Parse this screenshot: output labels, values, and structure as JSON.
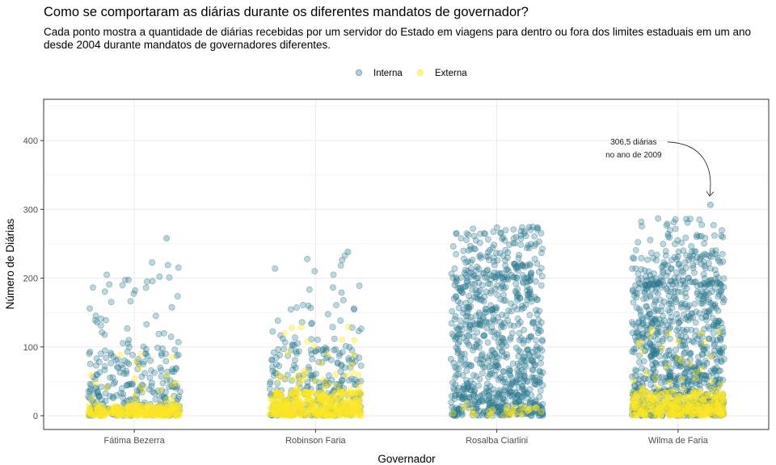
{
  "chart_data": {
    "type": "scatter",
    "title": "Como se comportaram as diárias durante os diferentes mandatos de governador?",
    "subtitle": "Cada ponto mostra a quantidade de diárias recebidas por um servidor do Estado em viagens para dentro ou fora dos limites estaduais em um ano desde 2004 durante mandatos de governadores diferentes.",
    "xlabel": "Governador",
    "ylabel": "Número de Diárias",
    "categories": [
      "Fátima Bezerra",
      "Robinson Faria",
      "Rosalba Ciarlini",
      "Wilma de Faria"
    ],
    "ylim": [
      -20,
      460
    ],
    "yticks": [
      0,
      100,
      200,
      300,
      400
    ],
    "grid": true,
    "legend_position": "top",
    "series": [
      {
        "name": "Interna",
        "color": "#2a788e",
        "dense_max": [
          90,
          95,
          200,
          190
        ],
        "sparse_max": [
          225,
          240,
          275,
          290
        ],
        "density": [
          1.0,
          1.0,
          3.0,
          3.4
        ]
      },
      {
        "name": "Externa",
        "color": "#fde725",
        "dense_max": [
          15,
          35,
          12,
          35
        ],
        "sparse_max": [
          95,
          140,
          40,
          130
        ],
        "density": [
          0.9,
          1.4,
          0.1,
          1.2
        ]
      }
    ],
    "highlight_points": [
      {
        "category": "Fátima Bezerra",
        "y": 258
      },
      {
        "category": "Robinson Faria",
        "y": 238
      },
      {
        "category": "Rosalba Ciarlini",
        "y": 274
      },
      {
        "category": "Wilma de Faria",
        "y": 306.5
      }
    ],
    "annotation": {
      "lines": [
        "306,5 diárias",
        "no ano de 2009"
      ],
      "category": "Wilma de Faria",
      "y": 306.5
    }
  }
}
